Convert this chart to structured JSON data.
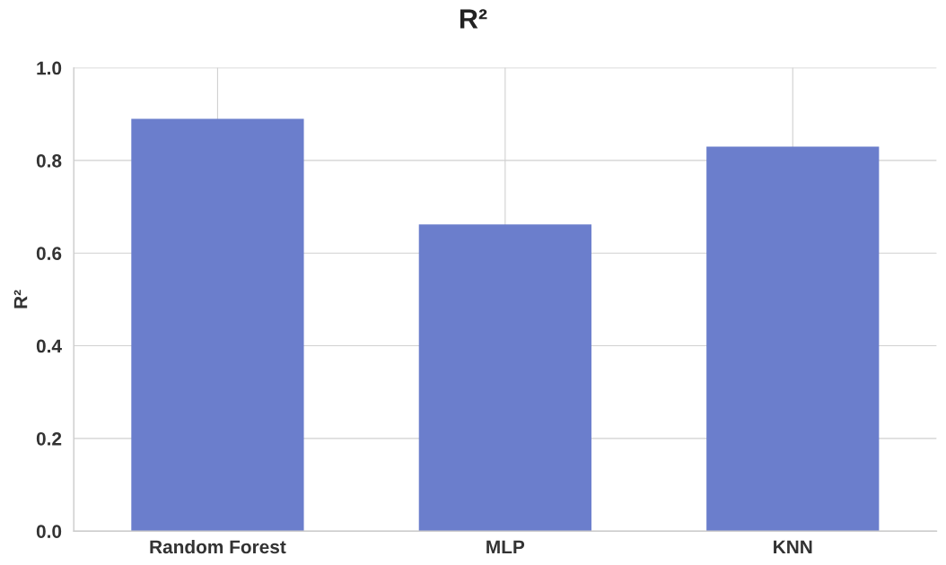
{
  "chart_data": {
    "type": "bar",
    "title": "R²",
    "ylabel": "R²",
    "categories": [
      "Random Forest",
      "MLP",
      "KNN"
    ],
    "values": [
      0.89,
      0.662,
      0.83
    ],
    "color": "#6b7ecc",
    "ylim": [
      0,
      1.0
    ],
    "yticks": [
      {
        "value": 0,
        "label": "0.0"
      },
      {
        "value": 0.2,
        "label": "0.2"
      },
      {
        "value": 0.4,
        "label": "0.4"
      },
      {
        "value": 0.6,
        "label": "0.6"
      },
      {
        "value": 0.8,
        "label": "0.8"
      },
      {
        "value": 1.0,
        "label": "1.0"
      }
    ],
    "grid": true
  }
}
